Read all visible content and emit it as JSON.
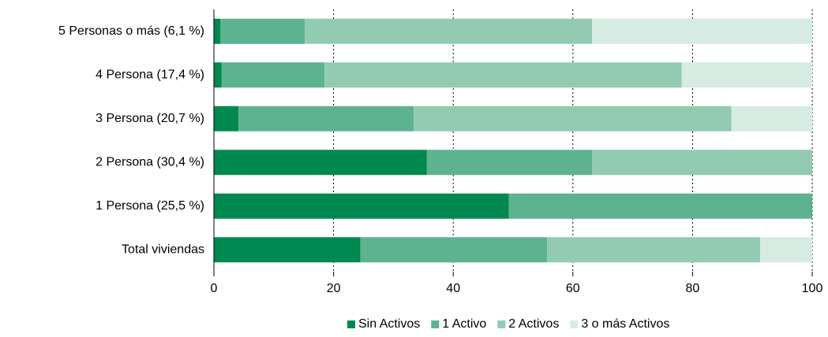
{
  "chart_data": {
    "type": "stacked_bar_horizontal",
    "categories": [
      "5 Personas o más (6,1 %)",
      "4 Persona (17,4 %)",
      "3 Persona (20,7 %)",
      "2 Persona (30,4 %)",
      "1 Persona (25,5 %)",
      "Total viviendas"
    ],
    "series": [
      {
        "name": "Sin Activos",
        "color": "#00894f",
        "values": [
          1.1,
          1.3,
          4.1,
          35.6,
          49.3,
          24.5
        ]
      },
      {
        "name": "1 Activo",
        "color": "#5db38f",
        "values": [
          14.1,
          17.2,
          29.3,
          27.6,
          50.7,
          31.2
        ]
      },
      {
        "name": "2 Activos",
        "color": "#93cbb2",
        "values": [
          48.0,
          59.7,
          53.1,
          36.8,
          0,
          35.6
        ]
      },
      {
        "name": "3 o más Activos",
        "color": "#d6ece2",
        "values": [
          36.8,
          21.8,
          13.5,
          0,
          0,
          8.7
        ]
      }
    ],
    "xlim": [
      0,
      100
    ],
    "xticks": [
      0,
      20,
      40,
      60,
      80,
      100
    ],
    "grid": true,
    "legend": "bottom"
  }
}
